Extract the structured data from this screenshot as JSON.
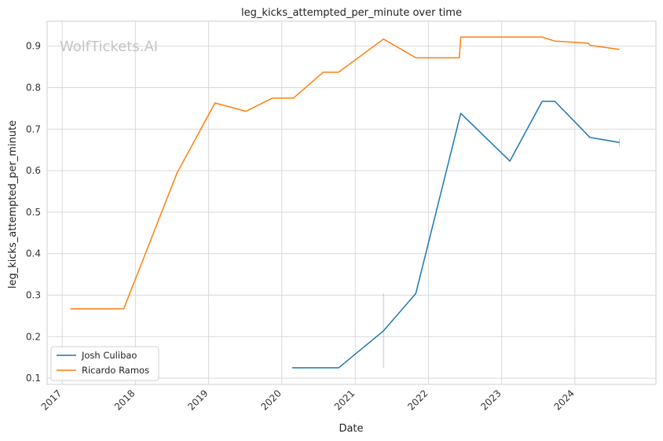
{
  "chart_data": {
    "type": "line",
    "title": "leg_kicks_attempted_per_minute over time",
    "xlabel": "Date",
    "ylabel": "leg_kicks_attempted_per_minute",
    "watermark": "WolfTickets.AI",
    "xlim": [
      "2016-10-18",
      "2025-02-08"
    ],
    "ylim": [
      0.085,
      0.96
    ],
    "xticks": [
      "2017",
      "2018",
      "2019",
      "2020",
      "2021",
      "2022",
      "2023",
      "2024"
    ],
    "yticks": [
      0.1,
      0.2,
      0.3,
      0.4,
      0.5,
      0.6,
      0.7,
      0.8,
      0.9
    ],
    "grid": true,
    "legend": "lower-left",
    "series": [
      {
        "name": "Josh Culibao",
        "color": "#1f77b4",
        "points": [
          [
            "2020-02-22",
            0.125
          ],
          [
            "2020-10-10",
            0.125
          ],
          [
            "2021-05-22",
            0.214
          ],
          [
            "2021-10-30",
            0.304
          ],
          [
            "2022-06-11",
            0.738
          ],
          [
            "2023-02-11",
            0.623
          ],
          [
            "2023-07-22",
            0.767
          ],
          [
            "2023-09-23",
            0.767
          ],
          [
            "2024-03-16",
            0.68
          ],
          [
            "2024-08-10",
            0.668
          ]
        ],
        "error_bars": [
          {
            "x": "2021-05-22",
            "low": 0.125,
            "high": 0.304
          },
          {
            "x": "2024-08-10",
            "low": 0.658,
            "high": 0.678
          }
        ]
      },
      {
        "name": "Ricardo Ramos",
        "color": "#ff7f0e",
        "points": [
          [
            "2017-02-11",
            0.267
          ],
          [
            "2017-11-04",
            0.267
          ],
          [
            "2018-07-28",
            0.595
          ],
          [
            "2019-02-02",
            0.763
          ],
          [
            "2019-07-06",
            0.743
          ],
          [
            "2019-11-16",
            0.775
          ],
          [
            "2020-02-29",
            0.775
          ],
          [
            "2020-07-25",
            0.837
          ],
          [
            "2020-10-10",
            0.837
          ],
          [
            "2021-05-22",
            0.917
          ],
          [
            "2021-10-30",
            0.872
          ],
          [
            "2022-06-04",
            0.872
          ],
          [
            "2022-06-11",
            0.922
          ],
          [
            "2023-07-22",
            0.922
          ],
          [
            "2023-09-23",
            0.912
          ],
          [
            "2024-03-09",
            0.907
          ],
          [
            "2024-03-16",
            0.902
          ],
          [
            "2024-08-10",
            0.892
          ]
        ],
        "error_bars": []
      }
    ]
  }
}
